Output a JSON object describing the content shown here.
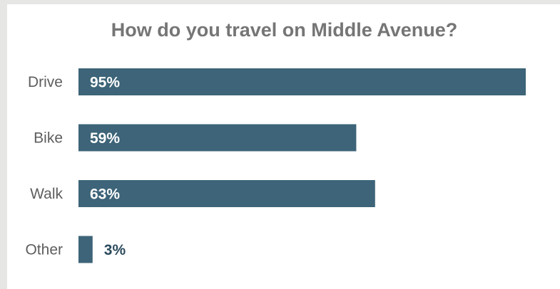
{
  "chart_data": {
    "type": "bar",
    "orientation": "horizontal",
    "title": "How do you travel on Middle Avenue?",
    "categories": [
      "Drive",
      "Bike",
      "Walk",
      "Other"
    ],
    "values": [
      95,
      59,
      63,
      3
    ],
    "value_labels": [
      "95%",
      "59%",
      "63%",
      "3%"
    ],
    "unit": "%",
    "xlim": [
      0,
      100
    ],
    "grid": false,
    "legend": "none",
    "bar_color": "#3d6478",
    "label_inside_color": "#ffffff",
    "label_outside_color": "#2b4a5c"
  }
}
